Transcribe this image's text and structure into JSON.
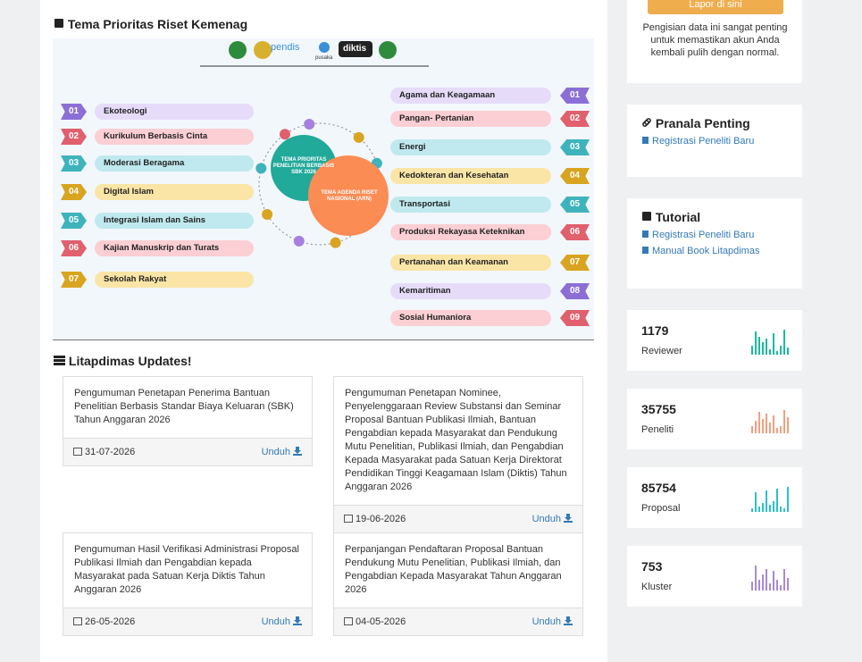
{
  "priority_section": {
    "title": "Tema Prioritas Riset Kemenag",
    "infographic": {
      "logos": [
        "pendis",
        "pusaka",
        "diktis"
      ],
      "center": {
        "primary": "TEMA PRIORITAS PENELITIAN BERBASIS SBK 2026",
        "secondary": "TEMA AGENDA RISET NASIONAL (ARN)"
      },
      "left_items": [
        {
          "number": "01",
          "label": "Ekoteologi",
          "color": "purple"
        },
        {
          "number": "02",
          "label": "Kurikulum Berbasis Cinta",
          "color": "red"
        },
        {
          "number": "03",
          "label": "Moderasi Beragama",
          "color": "teal"
        },
        {
          "number": "04",
          "label": "Digital Islam",
          "color": "gold"
        },
        {
          "number": "05",
          "label": "Integrasi Islam dan Sains",
          "color": "teal"
        },
        {
          "number": "06",
          "label": "Kajian Manuskrip dan Turats",
          "color": "red"
        },
        {
          "number": "07",
          "label": "Sekolah Rakyat",
          "color": "gold"
        }
      ],
      "right_items": [
        {
          "number": "01",
          "label": "Agama dan Keagamaan",
          "color": "purple"
        },
        {
          "number": "02",
          "label": "Pangan- Pertanian",
          "color": "red"
        },
        {
          "number": "03",
          "label": "Energi",
          "color": "teal"
        },
        {
          "number": "04",
          "label": "Kedokteran dan Kesehatan",
          "color": "gold"
        },
        {
          "number": "05",
          "label": "Transportasi",
          "color": "teal"
        },
        {
          "number": "06",
          "label": "Produksi Rekayasa Keteknikan",
          "color": "red"
        },
        {
          "number": "07",
          "label": "Pertanahan dan Keamanan",
          "color": "gold"
        },
        {
          "number": "08",
          "label": "Kemaritiman",
          "color": "purple"
        },
        {
          "number": "09",
          "label": "Sosial Humaniora",
          "color": "red"
        }
      ]
    }
  },
  "updates": {
    "title": "Litapdimas Updates!",
    "download_label": "Unduh",
    "cards": [
      {
        "text": "Pengumuman Penetapan Penerima Bantuan Penelitian Berbasis Standar Biaya Keluaran (SBK) Tahun Anggaran 2026",
        "date": "31-07-2026"
      },
      {
        "text": "Pengumuman Penetapan Nominee, Penyelenggaraan Review Substansi dan Seminar Proposal Bantuan Publikasi Ilmiah, Bantuan Pengabdian kepada Masyarakat dan Pendukung Mutu Penelitian, Publikasi Ilmiah, dan Pengabdian Kepada Masyarakat pada Satuan Kerja Direktorat Pendidikan Tinggi Keagamaan Islam (Diktis) Tahun Anggaran 2026",
        "date": "19-06-2026"
      },
      {
        "text": "Pengumuman Hasil Verifikasi Administrasi Proposal Publikasi Ilmiah dan Pengabdian kepada Masyarakat pada Satuan Kerja Diktis Tahun Anggaran 2026",
        "date": "26-05-2026"
      },
      {
        "text": "Perpanjangan Pendaftaran Proposal Bantuan Pendukung Mutu Penelitian, Publikasi Ilmiah, dan Pengabdian Kepada Masyarakat Tahun Anggaran 2026",
        "date": "04-05-2026"
      }
    ]
  },
  "sidebar": {
    "report_button": "Lapor di sini",
    "report_note": "Pengisian data ini sangat penting untuk memastikan akun Anda kembali pulih dengan normal.",
    "links_panel": {
      "title": "Pranala Penting",
      "links": [
        "Registrasi Peneliti Baru"
      ]
    },
    "tutorial": {
      "title": "Tutorial",
      "links": [
        "Registrasi Peneliti Baru",
        "Manual Book Litapdimas"
      ]
    },
    "stats": [
      {
        "value": 1179,
        "label": "Reviewer",
        "color": "#1abc9c",
        "sparkline": [
          10,
          26,
          20,
          14,
          18,
          6,
          24,
          4,
          10,
          28,
          8
        ]
      },
      {
        "value": 35755,
        "label": "Peneliti",
        "color": "#f0a080",
        "sparkline": [
          8,
          14,
          24,
          16,
          22,
          12,
          20,
          6,
          8,
          26,
          18
        ]
      },
      {
        "value": 85754,
        "label": "Proposal",
        "color": "#2bc0d0",
        "sparkline": [
          4,
          22,
          6,
          10,
          24,
          8,
          12,
          26,
          6,
          4,
          28
        ]
      },
      {
        "value": 753,
        "label": "Kluster",
        "color": "#a88ad8",
        "sparkline": [
          10,
          28,
          12,
          18,
          24,
          8,
          22,
          12,
          6,
          24,
          14
        ]
      }
    ]
  }
}
